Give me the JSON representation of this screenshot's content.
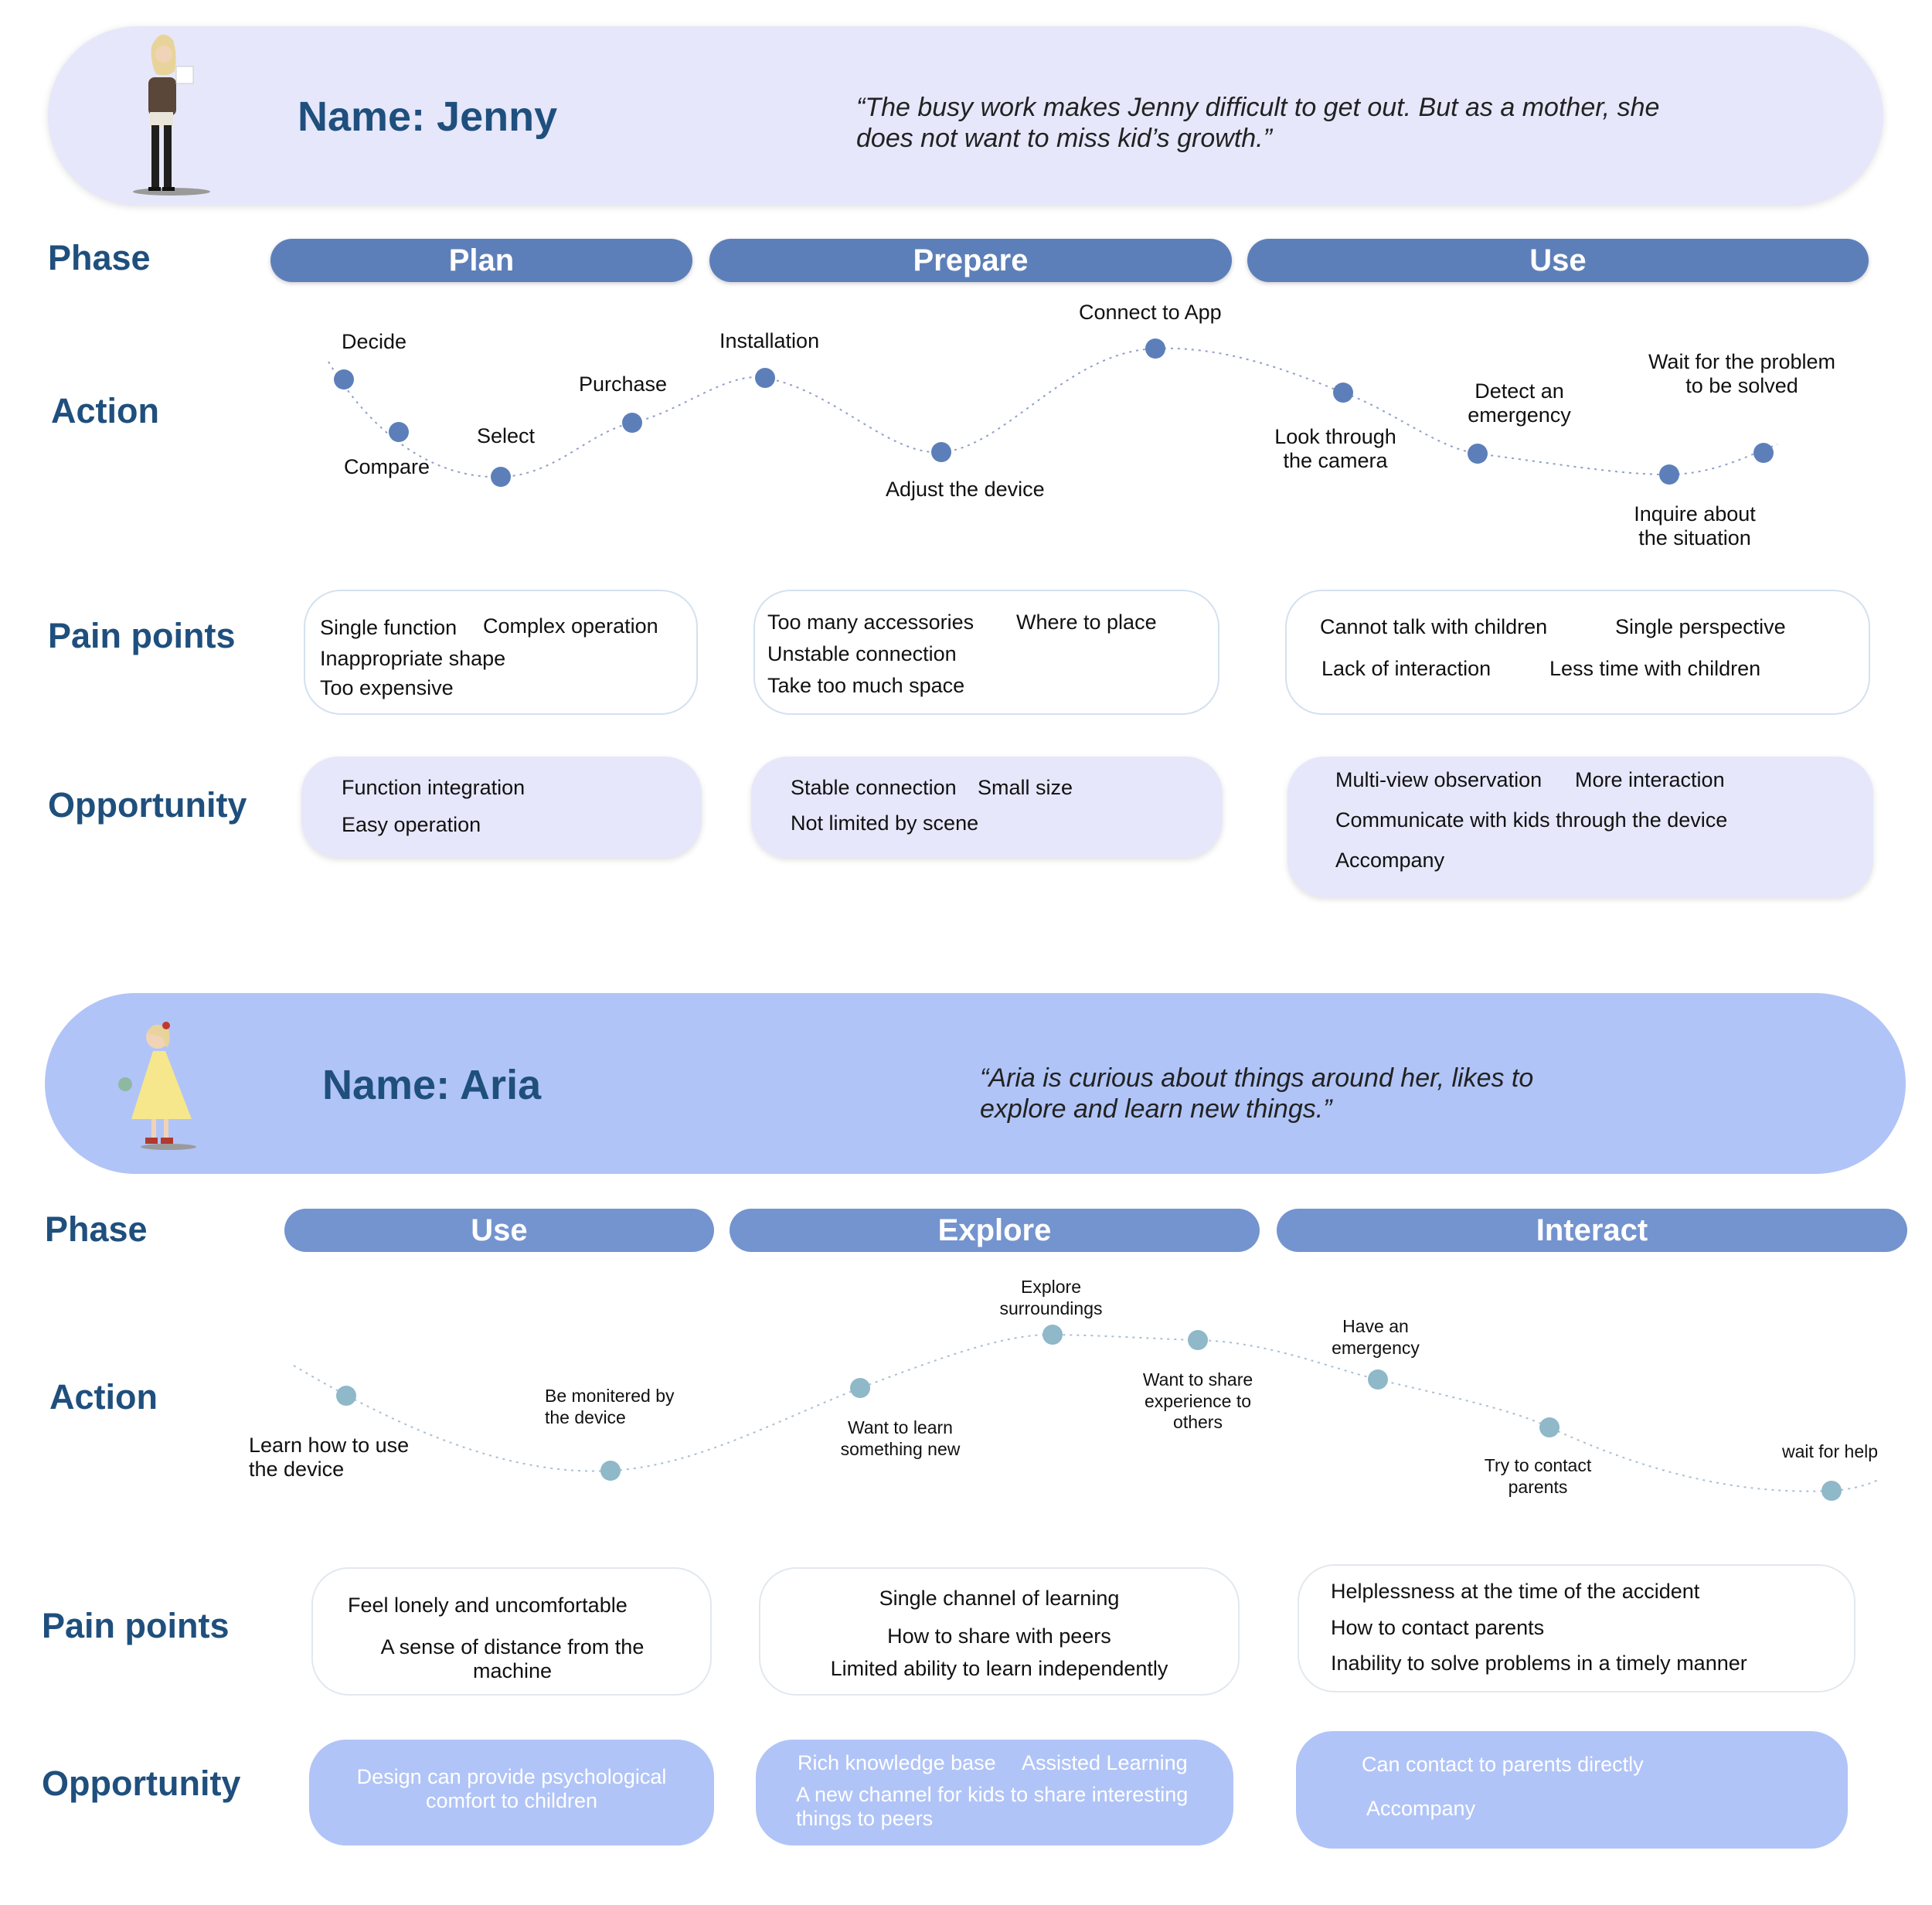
{
  "persona1": {
    "name": "Name: Jenny",
    "quote_line1": "“The busy work makes Jenny difficult    to get out. But as a mother, she",
    "quote_line2": "does    not want to miss kid’s growth.”"
  },
  "persona2": {
    "name": "Name: Aria",
    "quote_line1": "“Aria is curious about things    around her, likes to",
    "quote_line2": "explore and    learn new things.”"
  },
  "labels": {
    "phase": "Phase",
    "action": "Action",
    "pain_points": "Pain points",
    "opportunity": "Opportunity"
  },
  "jenny": {
    "phases": [
      "Plan",
      "Prepare",
      "Use"
    ],
    "actions": [
      "Decide",
      "Compare",
      "Select",
      "Purchase",
      "Installation",
      "Adjust the device",
      "Connect to App",
      "Look through\nthe camera",
      "Detect an\nemergency",
      "Inquire about\nthe situation",
      "Wait for the problem\nto be solved"
    ],
    "pain": {
      "plan": [
        "Single function",
        "Complex operation",
        "Inappropriate shape",
        "Too expensive"
      ],
      "prepare": [
        "Too many accessories",
        "Where to place",
        "Unstable connection",
        "Take too much space"
      ],
      "use": [
        "Cannot talk with children",
        "Single perspective",
        "Lack of interaction",
        "Less time with children"
      ]
    },
    "opportunity": {
      "plan": [
        "Function integration",
        "Easy operation"
      ],
      "prepare": [
        "Stable connection",
        "Small size",
        "Not limited by scene"
      ],
      "use": [
        "Multi-view observation",
        "More interaction",
        "Communicate with kids through the device",
        "Accompany"
      ]
    }
  },
  "aria": {
    "phases": [
      "Use",
      "Explore",
      "Interact"
    ],
    "actions": [
      "Learn how to use\nthe device",
      "Be monitered by\nthe device",
      "Want to learn\nsomething new",
      "Explore\nsurroundings",
      "Want to share\nexperience to\nothers",
      "Have an\nemergency",
      "Try to contact\nparents",
      "wait for help"
    ],
    "pain": {
      "use": [
        "Feel lonely and uncomfortable",
        "A sense of distance from the\nmachine"
      ],
      "explore": [
        "Single channel of learning",
        "How to share with peers",
        "Limited ability to learn independently"
      ],
      "interact": [
        "Helplessness at the time of the accident",
        "How to contact parents",
        "Inability to solve problems in a timely manner"
      ]
    },
    "opportunity": {
      "use": [
        "Design can provide psychological\ncomfort to children"
      ],
      "explore": [
        "Rich knowledge base",
        "Assisted Learning",
        "A new channel for kids to share interesting\nthings to peers"
      ],
      "interact": [
        "Can contact to parents directly",
        "Accompany"
      ]
    }
  },
  "colors": {
    "jenny_dot": "#5d7fb9",
    "aria_dot": "#8fb8c9",
    "heading": "#1f4f7d"
  }
}
